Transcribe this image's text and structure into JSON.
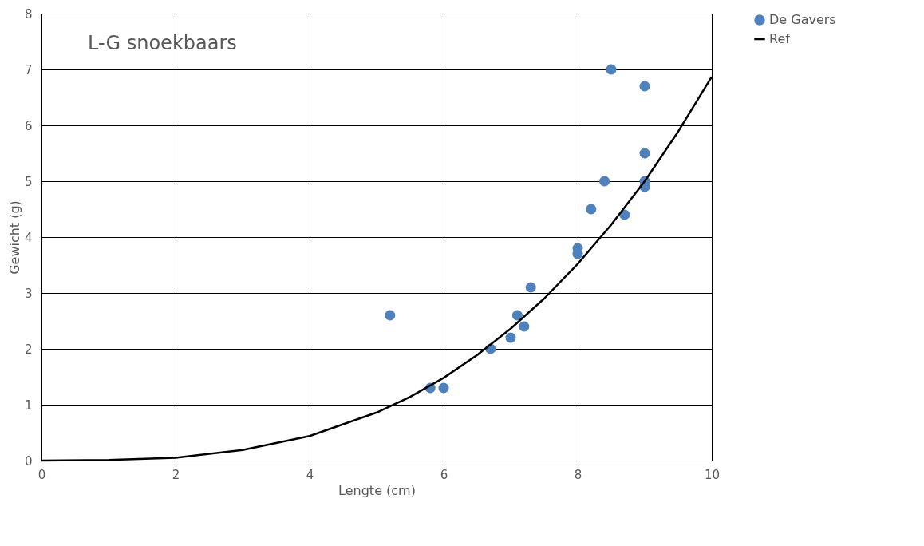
{
  "chart_data": {
    "type": "scatter",
    "title": "L-G snoekbaars",
    "xlabel": "Lengte (cm)",
    "ylabel": "Gewicht (g)",
    "xlim": [
      0,
      10
    ],
    "ylim": [
      0,
      8
    ],
    "xticks": [
      0,
      2,
      4,
      6,
      8,
      10
    ],
    "yticks": [
      0,
      1,
      2,
      3,
      4,
      5,
      6,
      7,
      8
    ],
    "grid": true,
    "legend": "right",
    "series": [
      {
        "name": "De Gavers",
        "marker": "circle",
        "color": "#4f81bd",
        "x": [
          5.2,
          5.8,
          6.0,
          6.7,
          7.0,
          7.1,
          7.2,
          7.3,
          8.0,
          8.0,
          8.2,
          8.4,
          8.5,
          8.7,
          9.0,
          9.0,
          9.0,
          9.0
        ],
        "values": [
          2.6,
          1.3,
          1.3,
          2.0,
          2.2,
          2.6,
          2.4,
          3.1,
          3.8,
          3.7,
          4.5,
          5.0,
          7.0,
          4.4,
          6.7,
          5.5,
          5.0,
          4.9
        ]
      },
      {
        "name": "Ref",
        "type": "line",
        "line_style": "solid",
        "color": "#000000",
        "x": [
          0,
          1,
          2,
          3,
          4,
          5,
          5.5,
          6,
          6.5,
          7,
          7.5,
          8,
          8.5,
          9,
          9.5,
          10
        ],
        "values": [
          0,
          0.01,
          0.05,
          0.19,
          0.44,
          0.86,
          1.14,
          1.48,
          1.89,
          2.36,
          2.9,
          3.52,
          4.22,
          5.0,
          5.89,
          6.87
        ]
      }
    ]
  }
}
